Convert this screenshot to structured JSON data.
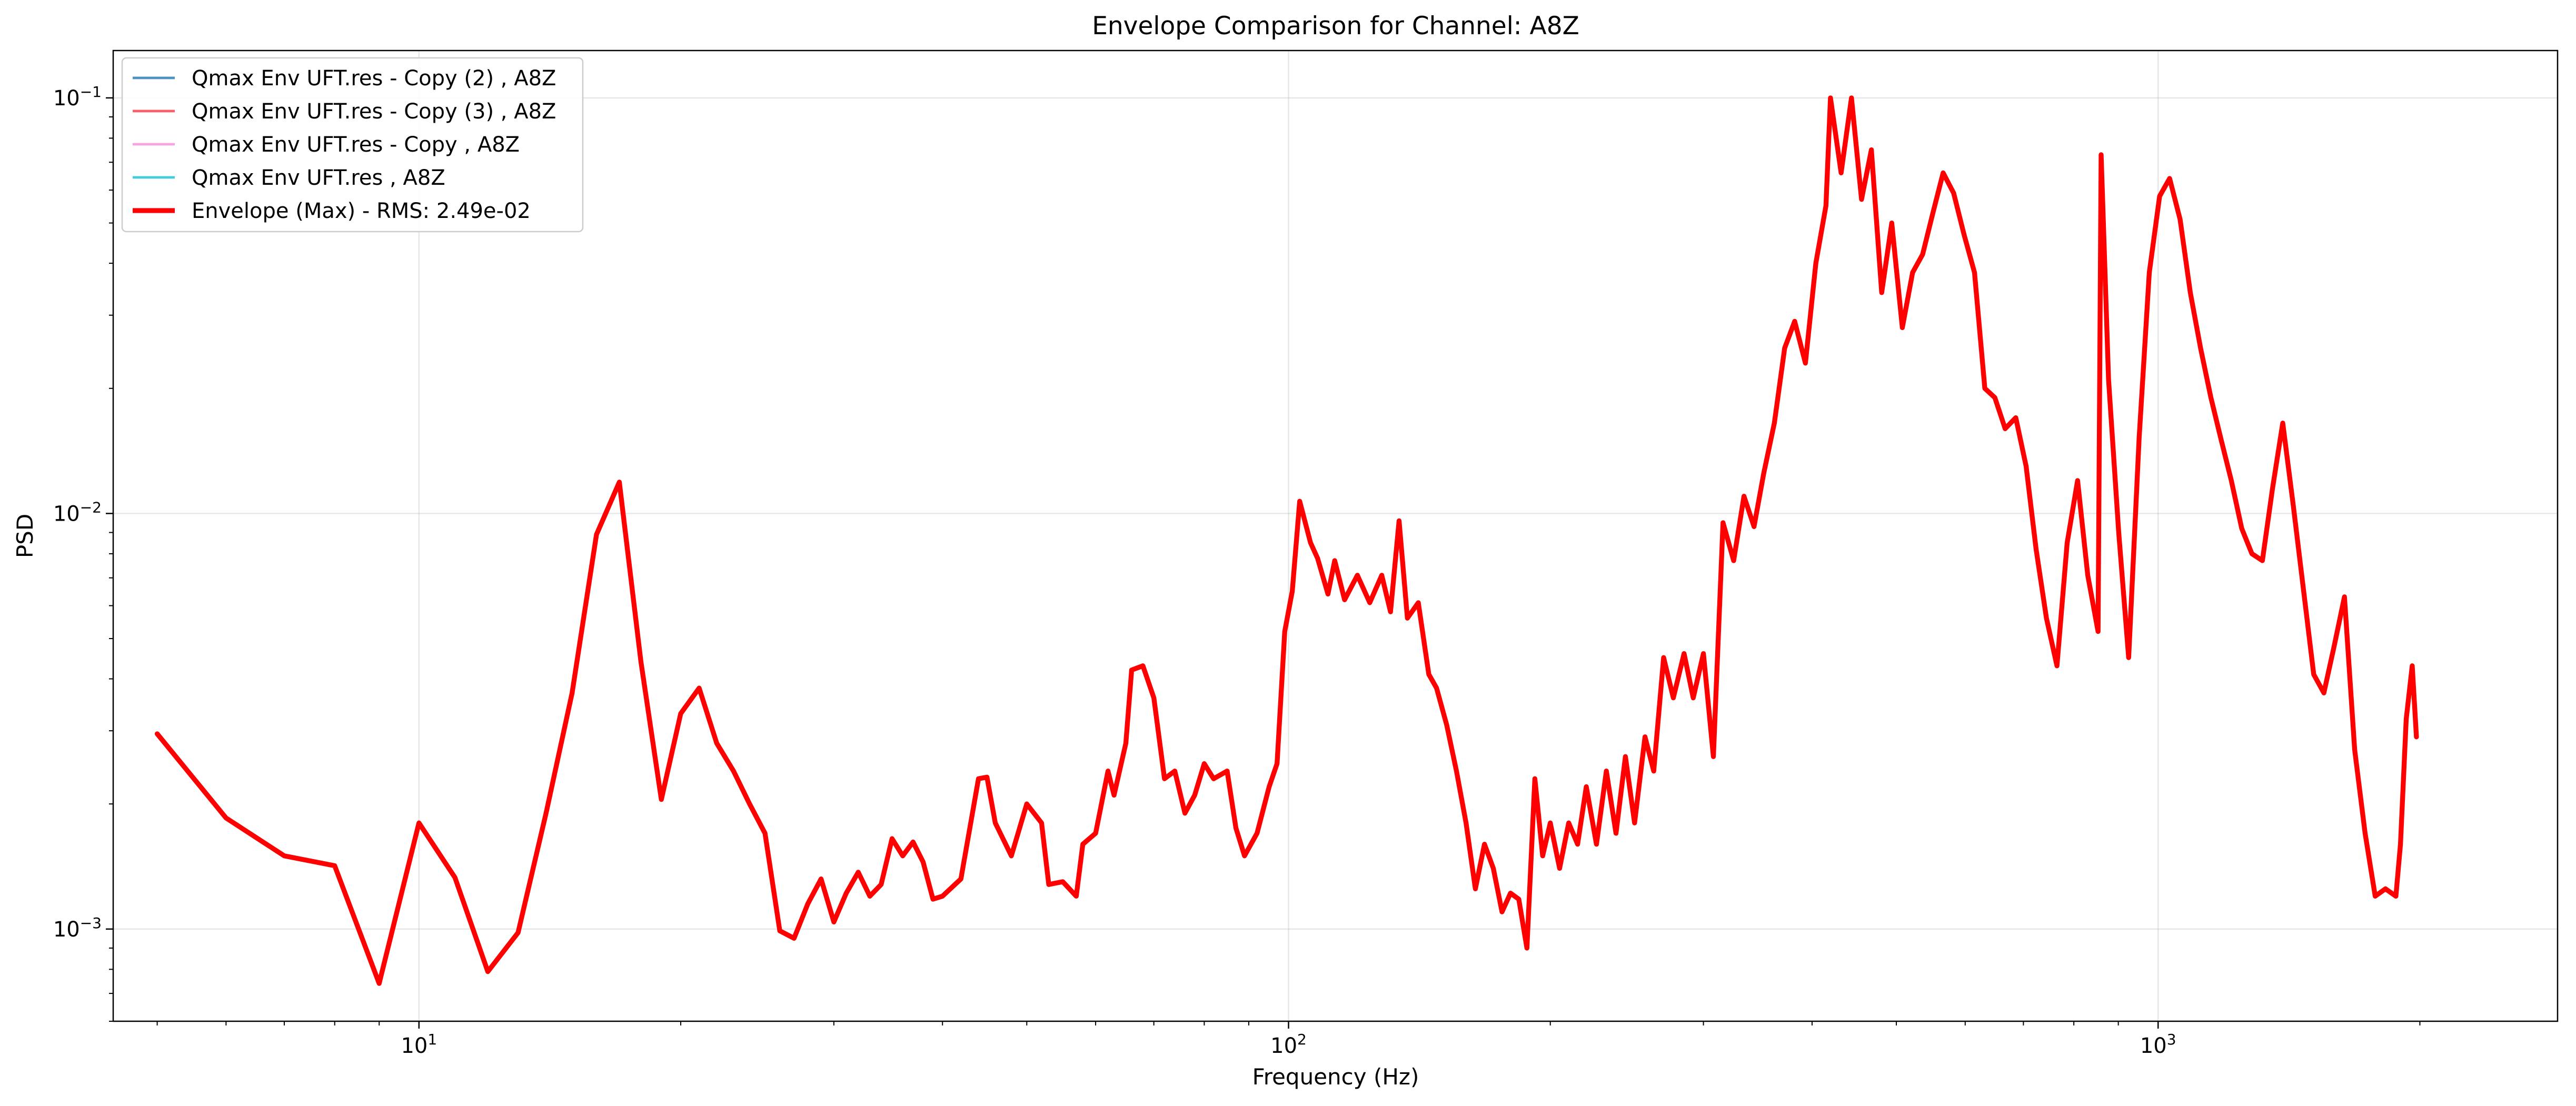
{
  "chart_data": {
    "type": "line",
    "title": "Envelope Comparison for Channel: A8Z",
    "xlabel": "Frequency (Hz)",
    "ylabel": "PSD",
    "xscale": "log",
    "yscale": "log",
    "xlim": [
      4.45,
      2880
    ],
    "ylim": [
      0.0006,
      0.13
    ],
    "grid": true,
    "legend_position": "top-left",
    "x_ticks": [
      {
        "value": 10,
        "base": "10",
        "exp": "1"
      },
      {
        "value": 100,
        "base": "10",
        "exp": "2"
      },
      {
        "value": 1000,
        "base": "10",
        "exp": "3"
      }
    ],
    "y_ticks": [
      {
        "value": 0.001,
        "base": "10",
        "exp": "−3"
      },
      {
        "value": 0.01,
        "base": "10",
        "exp": "−2"
      },
      {
        "value": 0.1,
        "base": "10",
        "exp": "−1"
      }
    ],
    "series": [
      {
        "name": "Qmax Env UFT.res - Copy (2) , A8Z",
        "color": "#1f77b4",
        "line_width": 1.5,
        "alpha": 0.8,
        "hidden_behind_envelope": true
      },
      {
        "name": "Qmax Env UFT.res - Copy (3) , A8Z",
        "color": "#ff3344",
        "line_width": 1.5,
        "alpha": 0.8,
        "hidden_behind_envelope": true
      },
      {
        "name": "Qmax Env UFT.res - Copy , A8Z",
        "color": "#f58ed8",
        "line_width": 1.5,
        "alpha": 0.8,
        "hidden_behind_envelope": true
      },
      {
        "name": "Qmax Env UFT.res , A8Z",
        "color": "#17becf",
        "line_width": 1.5,
        "alpha": 0.8,
        "hidden_behind_envelope": true
      },
      {
        "name": "Envelope (Max) - RMS: 2.49e-02",
        "color": "#ff0000",
        "line_width": 3,
        "points": [
          [
            5,
            0.00295
          ],
          [
            6,
            0.00185
          ],
          [
            7,
            0.0015
          ],
          [
            8,
            0.00142
          ],
          [
            9,
            0.00074
          ],
          [
            10,
            0.0018
          ],
          [
            11,
            0.00133
          ],
          [
            12,
            0.00079
          ],
          [
            13,
            0.00098
          ],
          [
            14,
            0.0019
          ],
          [
            15,
            0.0037
          ],
          [
            16,
            0.0089
          ],
          [
            17,
            0.0119
          ],
          [
            18,
            0.0044
          ],
          [
            19,
            0.00205
          ],
          [
            20,
            0.0033
          ],
          [
            21,
            0.0038
          ],
          [
            22,
            0.0028
          ],
          [
            23,
            0.0024
          ],
          [
            24,
            0.002
          ],
          [
            25,
            0.0017
          ],
          [
            26,
            0.00099
          ],
          [
            27,
            0.00095
          ],
          [
            28,
            0.00115
          ],
          [
            29,
            0.00132
          ],
          [
            30,
            0.00104
          ],
          [
            31,
            0.00122
          ],
          [
            32,
            0.00137
          ],
          [
            33,
            0.0012
          ],
          [
            34,
            0.00128
          ],
          [
            35,
            0.00165
          ],
          [
            36,
            0.0015
          ],
          [
            37,
            0.00162
          ],
          [
            38,
            0.00145
          ],
          [
            39,
            0.00118
          ],
          [
            40,
            0.0012
          ],
          [
            42,
            0.00132
          ],
          [
            44,
            0.0023
          ],
          [
            45,
            0.00232
          ],
          [
            46,
            0.0018
          ],
          [
            48,
            0.0015
          ],
          [
            50,
            0.002
          ],
          [
            52,
            0.0018
          ],
          [
            53,
            0.00128
          ],
          [
            55,
            0.0013
          ],
          [
            57,
            0.0012
          ],
          [
            58,
            0.0016
          ],
          [
            60,
            0.0017
          ],
          [
            62,
            0.0024
          ],
          [
            63,
            0.0021
          ],
          [
            65,
            0.0028
          ],
          [
            66,
            0.0042
          ],
          [
            68,
            0.0043
          ],
          [
            70,
            0.0036
          ],
          [
            72,
            0.0023
          ],
          [
            74,
            0.0024
          ],
          [
            76,
            0.0019
          ],
          [
            78,
            0.0021
          ],
          [
            80,
            0.0025
          ],
          [
            82,
            0.0023
          ],
          [
            85,
            0.0024
          ],
          [
            87,
            0.00175
          ],
          [
            89,
            0.0015
          ],
          [
            92,
            0.0017
          ],
          [
            95,
            0.0022
          ],
          [
            97,
            0.0025
          ],
          [
            99,
            0.0052
          ],
          [
            101,
            0.0065
          ],
          [
            103,
            0.0107
          ],
          [
            106,
            0.0085
          ],
          [
            108,
            0.0078
          ],
          [
            111,
            0.0064
          ],
          [
            113,
            0.0077
          ],
          [
            116,
            0.0062
          ],
          [
            120,
            0.0071
          ],
          [
            124,
            0.0061
          ],
          [
            128,
            0.0071
          ],
          [
            131,
            0.0058
          ],
          [
            134,
            0.0096
          ],
          [
            137,
            0.0056
          ],
          [
            141,
            0.0061
          ],
          [
            145,
            0.0041
          ],
          [
            148,
            0.0038
          ],
          [
            152,
            0.0031
          ],
          [
            156,
            0.0024
          ],
          [
            160,
            0.0018
          ],
          [
            164,
            0.00125
          ],
          [
            168,
            0.0016
          ],
          [
            172,
            0.0014
          ],
          [
            176,
            0.0011
          ],
          [
            180,
            0.00122
          ],
          [
            184,
            0.00118
          ],
          [
            188,
            0.0009
          ],
          [
            192,
            0.0023
          ],
          [
            196,
            0.0015
          ],
          [
            200,
            0.0018
          ],
          [
            205,
            0.0014
          ],
          [
            210,
            0.0018
          ],
          [
            215,
            0.0016
          ],
          [
            220,
            0.0022
          ],
          [
            226,
            0.0016
          ],
          [
            232,
            0.0024
          ],
          [
            238,
            0.0017
          ],
          [
            244,
            0.0026
          ],
          [
            250,
            0.0018
          ],
          [
            257,
            0.0029
          ],
          [
            263,
            0.0024
          ],
          [
            270,
            0.0045
          ],
          [
            277,
            0.0036
          ],
          [
            285,
            0.0046
          ],
          [
            292,
            0.0036
          ],
          [
            300,
            0.0046
          ],
          [
            308,
            0.0026
          ],
          [
            316,
            0.0095
          ],
          [
            325,
            0.0077
          ],
          [
            334,
            0.011
          ],
          [
            343,
            0.0093
          ],
          [
            352,
            0.0125
          ],
          [
            362,
            0.0165
          ],
          [
            372,
            0.025
          ],
          [
            382,
            0.029
          ],
          [
            393,
            0.023
          ],
          [
            404,
            0.04
          ],
          [
            415,
            0.055
          ],
          [
            420,
            0.1
          ],
          [
            432,
            0.066
          ],
          [
            444,
            0.1
          ],
          [
            456,
            0.057
          ],
          [
            468,
            0.075
          ],
          [
            481,
            0.034
          ],
          [
            494,
            0.05
          ],
          [
            508,
            0.028
          ],
          [
            522,
            0.038
          ],
          [
            536,
            0.042
          ],
          [
            551,
            0.053
          ],
          [
            566,
            0.066
          ],
          [
            582,
            0.059
          ],
          [
            598,
            0.047
          ],
          [
            615,
            0.038
          ],
          [
            632,
            0.02
          ],
          [
            649,
            0.019
          ],
          [
            667,
            0.016
          ],
          [
            686,
            0.017
          ],
          [
            705,
            0.013
          ],
          [
            724,
            0.0082
          ],
          [
            744,
            0.0056
          ],
          [
            765,
            0.0043
          ],
          [
            786,
            0.0085
          ],
          [
            808,
            0.012
          ],
          [
            830,
            0.0071
          ],
          [
            853,
            0.0052
          ],
          [
            860,
            0.073
          ],
          [
            877,
            0.021
          ],
          [
            901,
            0.009
          ],
          [
            925,
            0.0045
          ],
          [
            951,
            0.0152
          ],
          [
            977,
            0.038
          ],
          [
            1004,
            0.058
          ],
          [
            1031,
            0.064
          ],
          [
            1060,
            0.051
          ],
          [
            1089,
            0.034
          ],
          [
            1119,
            0.025
          ],
          [
            1150,
            0.019
          ],
          [
            1182,
            0.015
          ],
          [
            1214,
            0.012
          ],
          [
            1248,
            0.0092
          ],
          [
            1282,
            0.008
          ],
          [
            1318,
            0.0077
          ],
          [
            1354,
            0.0115
          ],
          [
            1391,
            0.0165
          ],
          [
            1430,
            0.0105
          ],
          [
            1469,
            0.0066
          ],
          [
            1510,
            0.0041
          ],
          [
            1551,
            0.0037
          ],
          [
            1594,
            0.0048
          ],
          [
            1638,
            0.0063
          ],
          [
            1683,
            0.0027
          ],
          [
            1730,
            0.0017
          ],
          [
            1777,
            0.0012
          ],
          [
            1826,
            0.00125
          ],
          [
            1877,
            0.0012
          ],
          [
            1900,
            0.0016
          ],
          [
            1929,
            0.0032
          ],
          [
            1960,
            0.0043
          ],
          [
            1982,
            0.0029
          ]
        ]
      }
    ]
  }
}
